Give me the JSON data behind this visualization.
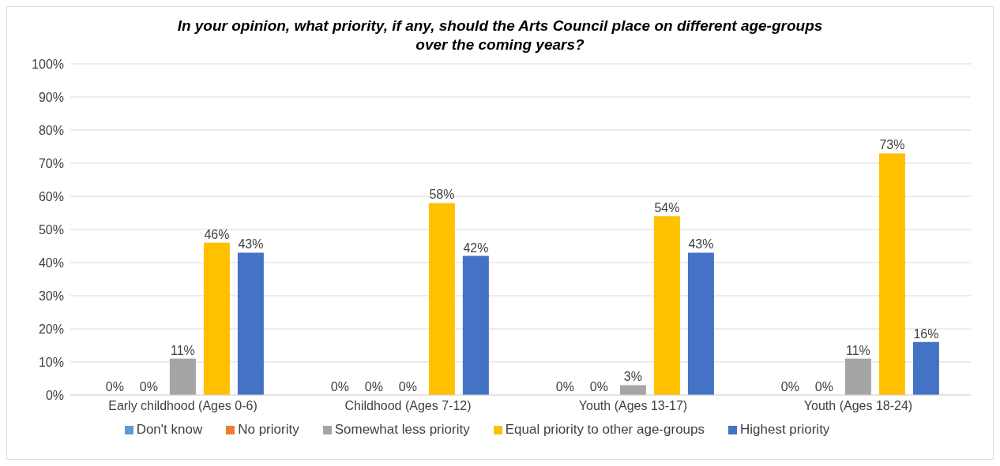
{
  "chart_data": {
    "type": "bar",
    "title": "In your opinion, what priority, if any, should the Arts Council place on different age-groups over the coming years?",
    "categories": [
      "Early childhood (Ages 0-6)",
      "Childhood (Ages 7-12)",
      "Youth (Ages 13-17)",
      "Youth (Ages 18-24)"
    ],
    "series": [
      {
        "name": "Don't know",
        "color": "#5b9bd5",
        "values": [
          0,
          0,
          0,
          0
        ],
        "value_labels": [
          "0%",
          "0%",
          "0%",
          "0%"
        ]
      },
      {
        "name": "No priority",
        "color": "#ed7d31",
        "values": [
          0,
          0,
          0,
          0
        ],
        "value_labels": [
          "0%",
          "0%",
          "0%",
          "0%"
        ]
      },
      {
        "name": "Somewhat less priority",
        "color": "#a5a5a5",
        "values": [
          11,
          0,
          3,
          11
        ],
        "value_labels": [
          "11%",
          "0%",
          "3%",
          "11%"
        ]
      },
      {
        "name": "Equal priority to other age-groups",
        "color": "#ffc000",
        "values": [
          46,
          58,
          54,
          73
        ],
        "value_labels": [
          "46%",
          "58%",
          "54%",
          "73%"
        ]
      },
      {
        "name": "Highest priority",
        "color": "#4472c4",
        "values": [
          43,
          42,
          43,
          16
        ],
        "value_labels": [
          "43%",
          "42%",
          "43%",
          "16%"
        ]
      }
    ],
    "ylim": [
      0,
      100
    ],
    "yticks": [
      {
        "value": 0,
        "label": "0%"
      },
      {
        "value": 10,
        "label": "10%"
      },
      {
        "value": 20,
        "label": "20%"
      },
      {
        "value": 30,
        "label": "30%"
      },
      {
        "value": 40,
        "label": "40%"
      },
      {
        "value": 50,
        "label": "50%"
      },
      {
        "value": 60,
        "label": "60%"
      },
      {
        "value": 70,
        "label": "70%"
      },
      {
        "value": 80,
        "label": "80%"
      },
      {
        "value": 90,
        "label": "90%"
      },
      {
        "value": 100,
        "label": "100%"
      }
    ],
    "grid": "y",
    "legend": "bottom"
  }
}
